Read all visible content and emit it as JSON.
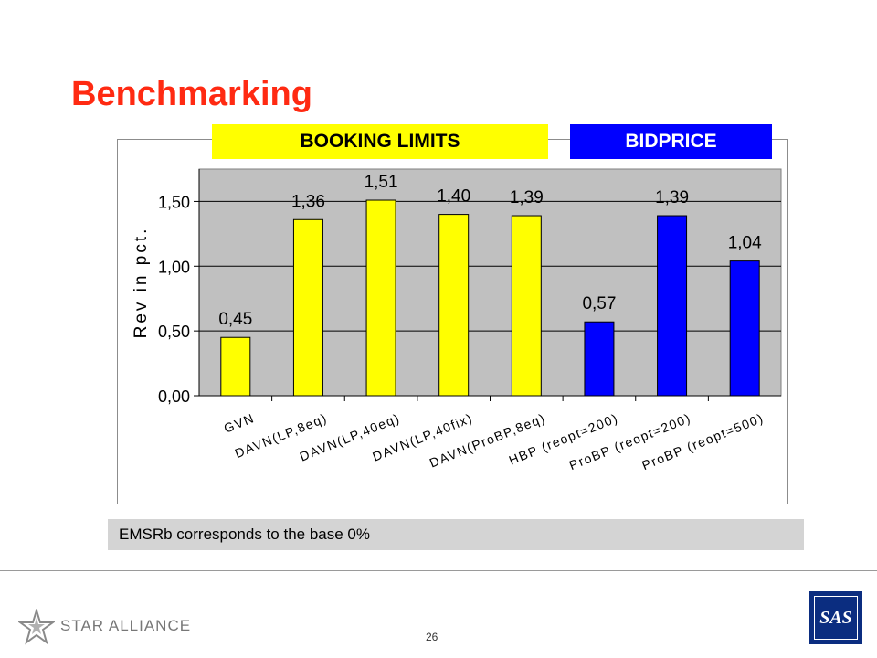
{
  "slide": {
    "title": "Benchmarking",
    "band_booking": "BOOKING LIMITS",
    "band_bidprice": "BIDPRICE",
    "note": "EMSRb corresponds to the base 0%",
    "footer_brand": "STAR ALLIANCE",
    "page_number": "26",
    "sas_logo": "SAS"
  },
  "colors": {
    "title": "#ff2a12",
    "booking": "#ffff00",
    "bidprice": "#0000ff",
    "plot_bg": "#c0c0c0"
  },
  "chart_data": {
    "type": "bar",
    "categories": [
      "GVN",
      "DAVN(LP,8eq)",
      "DAVN(LP,40eq)",
      "DAVN(LP,40fix)",
      "DAVN(ProBP,8eq)",
      "HBP (reopt=200)",
      "ProBP (reopt=200)",
      "ProBP (reopt=500)"
    ],
    "values": [
      0.45,
      1.36,
      1.51,
      1.4,
      1.39,
      0.57,
      1.39,
      1.04
    ],
    "value_labels": [
      "0,45",
      "1,36",
      "1,51",
      "1,40",
      "1,39",
      "0,57",
      "1,39",
      "1,04"
    ],
    "bar_colors": [
      "#ffff00",
      "#ffff00",
      "#ffff00",
      "#ffff00",
      "#ffff00",
      "#0000ff",
      "#0000ff",
      "#0000ff"
    ],
    "ylabel": "Rev in pct.",
    "yticks": [
      0,
      0.5,
      1.0,
      1.5
    ],
    "ytick_labels": [
      "0,00",
      "0,50",
      "1,00",
      "1,50"
    ],
    "ylim": [
      0,
      1.75
    ],
    "grid": true,
    "legend": "none"
  }
}
